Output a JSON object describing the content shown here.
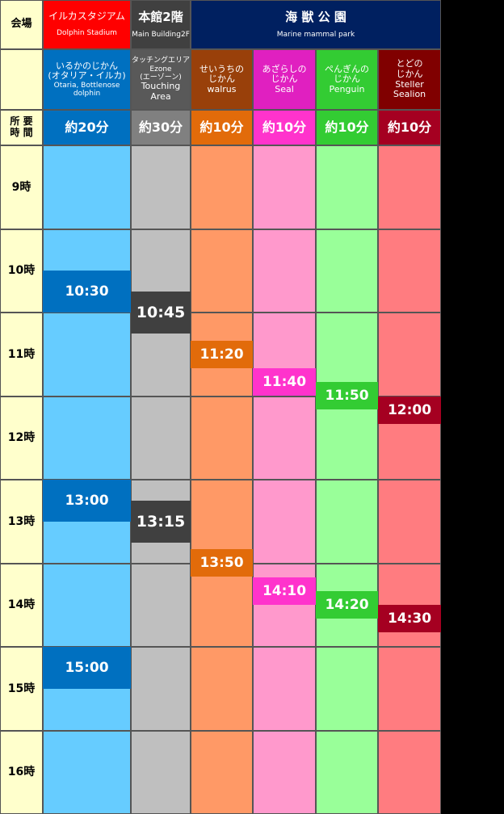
{
  "header": {
    "venue_label": "会場",
    "venues": [
      {
        "name": "イルカスタジアム",
        "name_en": "Dolphin Stadium"
      },
      {
        "name": "本館2階",
        "name_en": "Main Building2F"
      },
      {
        "name": "海 獣 公 園",
        "name_en": "Marine mammal park"
      }
    ]
  },
  "duration_label": [
    "所 要",
    "時 間"
  ],
  "shows": [
    {
      "name_lines": [
        "いるかのじかん",
        "(オタリア・イルカ)",
        "Otaria, Bottlenose dolphin"
      ],
      "duration": "約20分",
      "times": [
        "10:30",
        "13:00",
        "15:00"
      ]
    },
    {
      "name_lines": [
        "タッチングエリア",
        "Ezone",
        "(エーゾーン)",
        "Touching Area"
      ],
      "duration": "約30分",
      "times": [
        "10:45",
        "13:15"
      ]
    },
    {
      "name_lines": [
        "せいうちの",
        "じかん",
        "walrus"
      ],
      "duration": "約10分",
      "times": [
        "11:20",
        "13:50"
      ]
    },
    {
      "name_lines": [
        "あざらしの",
        "じかん",
        "Seal"
      ],
      "duration": "約10分",
      "times": [
        "11:40",
        "14:10"
      ]
    },
    {
      "name_lines": [
        "ぺんぎんの",
        "じかん",
        "Penguin"
      ],
      "duration": "約10分",
      "times": [
        "11:50",
        "14:20"
      ]
    },
    {
      "name_lines": [
        "とどの",
        "じかん",
        "Steller Sealion"
      ],
      "duration": "約10分",
      "times": [
        "12:00",
        "14:30"
      ]
    }
  ],
  "hours": [
    "9時",
    "10時",
    "11時",
    "12時",
    "13時",
    "14時",
    "15時",
    "16時"
  ]
}
